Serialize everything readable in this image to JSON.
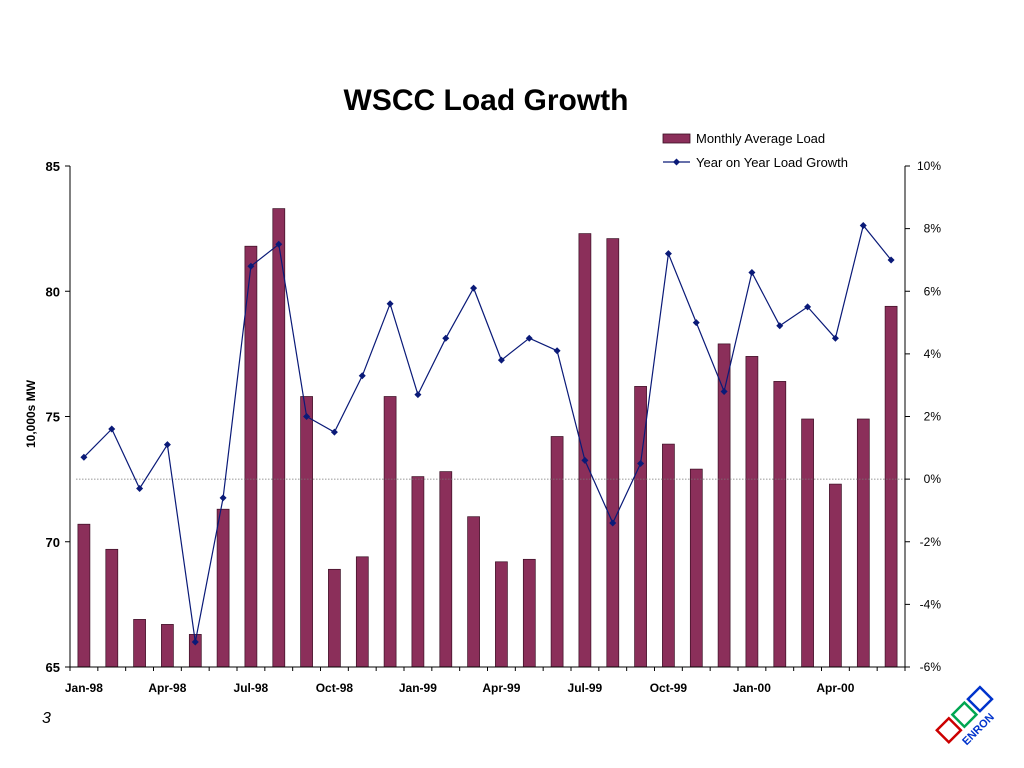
{
  "page_number": "3",
  "logo": {
    "text": "ENRON",
    "colors": [
      "#cc0000",
      "#00a651",
      "#0033cc"
    ]
  },
  "colors": {
    "bar": "#8b2f5a",
    "bar_edge": "#3a0f24",
    "line": "#0a1a78",
    "axis": "#000000",
    "zero_line": "#777777"
  },
  "chart_data": {
    "type": "bar+line",
    "title": "WSCC Load Growth",
    "ylabel": "10,000s MW",
    "ylim": [
      65,
      85
    ],
    "y_ticks": [
      "85",
      "80",
      "75",
      "70",
      "65"
    ],
    "y2lim": [
      -6,
      10
    ],
    "y2_ticks": [
      "10%",
      "8%",
      "6%",
      "4%",
      "2%",
      "0%",
      "-2%",
      "-4%",
      "-6%"
    ],
    "grid": false,
    "legend_position": "top-right",
    "x_tick_labels": [
      "Jan-98",
      "Apr-98",
      "Jul-98",
      "Oct-98",
      "Jan-99",
      "Apr-99",
      "Jul-99",
      "Oct-99",
      "Jan-00",
      "Apr-00"
    ],
    "categories": [
      "Jan-98",
      "Feb-98",
      "Mar-98",
      "Apr-98",
      "May-98",
      "Jun-98",
      "Jul-98",
      "Aug-98",
      "Sep-98",
      "Oct-98",
      "Nov-98",
      "Dec-98",
      "Jan-99",
      "Feb-99",
      "Mar-99",
      "Apr-99",
      "May-99",
      "Jun-99",
      "Jul-99",
      "Aug-99",
      "Sep-99",
      "Oct-99",
      "Nov-99",
      "Dec-99",
      "Jan-00",
      "Feb-00",
      "Mar-00",
      "Apr-00",
      "May-00",
      "Jun-00"
    ],
    "series": [
      {
        "name": "Monthly Average Load",
        "type": "bar",
        "axis": "left",
        "values": [
          70.7,
          69.7,
          66.9,
          66.7,
          66.3,
          71.3,
          81.8,
          83.3,
          75.8,
          68.9,
          69.4,
          75.8,
          72.6,
          72.8,
          71.0,
          69.2,
          69.3,
          74.2,
          82.3,
          82.1,
          76.2,
          73.9,
          72.9,
          77.9,
          77.4,
          76.4,
          74.9,
          72.3,
          74.9,
          79.4
        ]
      },
      {
        "name": "Year on Year Load Growth",
        "type": "line",
        "axis": "right",
        "values": [
          0.7,
          1.6,
          -0.3,
          1.1,
          -5.2,
          -0.6,
          6.8,
          7.5,
          2.0,
          1.5,
          3.3,
          5.6,
          2.7,
          4.5,
          6.1,
          3.8,
          4.5,
          4.1,
          0.6,
          -1.4,
          0.5,
          7.2,
          5.0,
          2.8,
          6.6,
          4.9,
          5.5,
          4.5,
          8.1,
          7.0
        ]
      }
    ]
  }
}
